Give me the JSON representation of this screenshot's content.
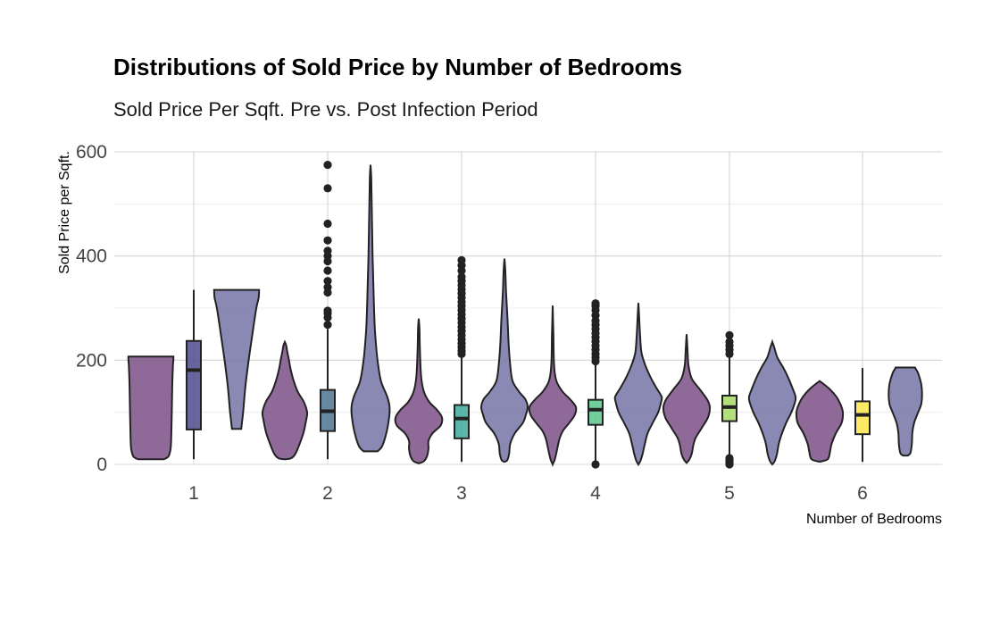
{
  "chart_data": {
    "type": "violin",
    "title": "Distributions of Sold Price by Number of Bedrooms",
    "subtitle": "Sold Price Per Sqft. Pre vs. Post Infection Period",
    "xlabel": "Number of Bedrooms",
    "ylabel": "Sold Price per Sqft.",
    "ylim": [
      0,
      600
    ],
    "y_ticks": [
      0,
      200,
      400,
      600
    ],
    "categories": [
      "1",
      "2",
      "3",
      "4",
      "5",
      "6"
    ],
    "grid": true,
    "pre_color": "#7b4f86",
    "post_color": "#7474a6",
    "box_colors": [
      "#4e4c8c",
      "#4c7592",
      "#3da99b",
      "#59c78c",
      "#a6db65",
      "#fde74c"
    ],
    "pre": [
      {
        "min": 10,
        "max": 207,
        "profile": [
          [
            10,
            0.55
          ],
          [
            15,
            0.75
          ],
          [
            30,
            0.85
          ],
          [
            60,
            0.88
          ],
          [
            100,
            0.9
          ],
          [
            150,
            0.92
          ],
          [
            190,
            0.95
          ],
          [
            200,
            0.97
          ],
          [
            207,
            0.97
          ]
        ]
      },
      {
        "min": 10,
        "max": 235,
        "profile": [
          [
            10,
            0.05
          ],
          [
            12,
            0.28
          ],
          [
            20,
            0.45
          ],
          [
            35,
            0.6
          ],
          [
            60,
            0.8
          ],
          [
            85,
            0.92
          ],
          [
            100,
            0.96
          ],
          [
            120,
            0.82
          ],
          [
            140,
            0.55
          ],
          [
            165,
            0.35
          ],
          [
            185,
            0.24
          ],
          [
            200,
            0.18
          ],
          [
            215,
            0.11
          ],
          [
            228,
            0.06
          ],
          [
            235,
            0
          ]
        ]
      },
      {
        "min": 2,
        "max": 280,
        "profile": [
          [
            2,
            0
          ],
          [
            6,
            0.22
          ],
          [
            15,
            0.35
          ],
          [
            30,
            0.42
          ],
          [
            45,
            0.42
          ],
          [
            60,
            0.6
          ],
          [
            75,
            0.95
          ],
          [
            90,
            1.0
          ],
          [
            105,
            0.78
          ],
          [
            120,
            0.45
          ],
          [
            140,
            0.22
          ],
          [
            170,
            0.1
          ],
          [
            220,
            0.05
          ],
          [
            260,
            0.03
          ],
          [
            280,
            0
          ]
        ]
      },
      {
        "min": 0,
        "max": 305,
        "profile": [
          [
            0,
            0
          ],
          [
            8,
            0.08
          ],
          [
            20,
            0.15
          ],
          [
            35,
            0.22
          ],
          [
            50,
            0.3
          ],
          [
            65,
            0.45
          ],
          [
            80,
            0.72
          ],
          [
            95,
            0.95
          ],
          [
            110,
            1.0
          ],
          [
            125,
            0.75
          ],
          [
            140,
            0.42
          ],
          [
            160,
            0.16
          ],
          [
            190,
            0.06
          ],
          [
            250,
            0.03
          ],
          [
            305,
            0
          ]
        ]
      },
      {
        "min": 3,
        "max": 250,
        "profile": [
          [
            3,
            0
          ],
          [
            8,
            0.1
          ],
          [
            20,
            0.22
          ],
          [
            35,
            0.28
          ],
          [
            50,
            0.38
          ],
          [
            70,
            0.65
          ],
          [
            90,
            0.92
          ],
          [
            110,
            1.0
          ],
          [
            125,
            0.88
          ],
          [
            145,
            0.55
          ],
          [
            165,
            0.22
          ],
          [
            190,
            0.08
          ],
          [
            220,
            0.04
          ],
          [
            250,
            0
          ]
        ]
      },
      {
        "min": 5,
        "max": 160,
        "profile": [
          [
            5,
            0
          ],
          [
            10,
            0.35
          ],
          [
            25,
            0.45
          ],
          [
            40,
            0.52
          ],
          [
            60,
            0.7
          ],
          [
            80,
            0.95
          ],
          [
            100,
            1.0
          ],
          [
            115,
            0.9
          ],
          [
            130,
            0.72
          ],
          [
            145,
            0.42
          ],
          [
            155,
            0.15
          ],
          [
            160,
            0
          ]
        ]
      }
    ],
    "post": [
      {
        "min": 68,
        "max": 335,
        "profile": [
          [
            68,
            0.2
          ],
          [
            100,
            0.28
          ],
          [
            150,
            0.38
          ],
          [
            200,
            0.52
          ],
          [
            250,
            0.68
          ],
          [
            300,
            0.85
          ],
          [
            320,
            0.95
          ],
          [
            335,
            0.97
          ]
        ]
      },
      {
        "min": 25,
        "max": 575,
        "profile": [
          [
            25,
            0.3
          ],
          [
            35,
            0.5
          ],
          [
            60,
            0.68
          ],
          [
            90,
            0.8
          ],
          [
            110,
            0.82
          ],
          [
            130,
            0.72
          ],
          [
            160,
            0.45
          ],
          [
            200,
            0.3
          ],
          [
            250,
            0.2
          ],
          [
            300,
            0.15
          ],
          [
            350,
            0.12
          ],
          [
            400,
            0.09
          ],
          [
            450,
            0.07
          ],
          [
            500,
            0.05
          ],
          [
            550,
            0.03
          ],
          [
            575,
            0
          ]
        ]
      },
      {
        "min": 5,
        "max": 395,
        "profile": [
          [
            5,
            0
          ],
          [
            8,
            0.12
          ],
          [
            20,
            0.2
          ],
          [
            40,
            0.25
          ],
          [
            60,
            0.45
          ],
          [
            80,
            0.8
          ],
          [
            95,
            0.92
          ],
          [
            110,
            1.0
          ],
          [
            125,
            0.9
          ],
          [
            140,
            0.62
          ],
          [
            160,
            0.35
          ],
          [
            190,
            0.25
          ],
          [
            230,
            0.18
          ],
          [
            280,
            0.13
          ],
          [
            330,
            0.07
          ],
          [
            370,
            0.04
          ],
          [
            395,
            0
          ]
        ]
      },
      {
        "min": 0,
        "max": 310,
        "profile": [
          [
            0,
            0
          ],
          [
            6,
            0.08
          ],
          [
            20,
            0.18
          ],
          [
            40,
            0.28
          ],
          [
            60,
            0.4
          ],
          [
            80,
            0.62
          ],
          [
            100,
            0.85
          ],
          [
            120,
            0.98
          ],
          [
            130,
            1.0
          ],
          [
            145,
            0.8
          ],
          [
            165,
            0.55
          ],
          [
            190,
            0.3
          ],
          [
            215,
            0.13
          ],
          [
            250,
            0.07
          ],
          [
            285,
            0.03
          ],
          [
            310,
            0
          ]
        ]
      },
      {
        "min": 0,
        "max": 235,
        "profile": [
          [
            0,
            0
          ],
          [
            6,
            0.1
          ],
          [
            20,
            0.2
          ],
          [
            40,
            0.28
          ],
          [
            60,
            0.42
          ],
          [
            80,
            0.6
          ],
          [
            100,
            0.82
          ],
          [
            120,
            0.98
          ],
          [
            130,
            1.0
          ],
          [
            145,
            0.88
          ],
          [
            165,
            0.7
          ],
          [
            185,
            0.48
          ],
          [
            205,
            0.22
          ],
          [
            225,
            0.08
          ],
          [
            235,
            0
          ]
        ]
      },
      {
        "min": 17,
        "max": 186,
        "profile": [
          [
            17,
            0.1
          ],
          [
            22,
            0.22
          ],
          [
            40,
            0.28
          ],
          [
            60,
            0.3
          ],
          [
            80,
            0.38
          ],
          [
            100,
            0.55
          ],
          [
            115,
            0.68
          ],
          [
            135,
            0.72
          ],
          [
            155,
            0.68
          ],
          [
            175,
            0.55
          ],
          [
            183,
            0.45
          ],
          [
            186,
            0.42
          ]
        ]
      }
    ],
    "boxes": [
      {
        "category": "1",
        "whisker_low": 10,
        "q1": 67,
        "median": 181,
        "q3": 237,
        "whisker_high": 335,
        "outliers": []
      },
      {
        "category": "2",
        "whisker_low": 10,
        "q1": 64,
        "median": 102,
        "q3": 143,
        "whisker_high": 260,
        "outliers": [
          268,
          282,
          290,
          295,
          330,
          340,
          352,
          372,
          390,
          400,
          410,
          430,
          462,
          530,
          575
        ]
      },
      {
        "category": "3",
        "whisker_low": 5,
        "q1": 50,
        "median": 88,
        "q3": 114,
        "whisker_high": 210,
        "outliers": [
          212,
          218,
          225,
          232,
          240,
          248,
          256,
          264,
          272,
          280,
          288,
          296,
          304,
          312,
          320,
          328,
          336,
          344,
          352,
          360,
          372,
          382,
          392
        ]
      },
      {
        "category": "4",
        "whisker_low": 2,
        "q1": 76,
        "median": 105,
        "q3": 124,
        "whisker_high": 195,
        "outliers": [
          0,
          198,
          205,
          212,
          220,
          228,
          236,
          244,
          252,
          260,
          268,
          276,
          286,
          296,
          304,
          309
        ]
      },
      {
        "category": "5",
        "whisker_low": 15,
        "q1": 83,
        "median": 110,
        "q3": 132,
        "whisker_high": 208,
        "outliers": [
          0,
          3,
          6,
          9,
          12,
          212,
          220,
          228,
          235,
          248
        ]
      },
      {
        "category": "6",
        "whisker_low": 5,
        "q1": 58,
        "median": 95,
        "q3": 121,
        "whisker_high": 185,
        "outliers": []
      }
    ]
  }
}
